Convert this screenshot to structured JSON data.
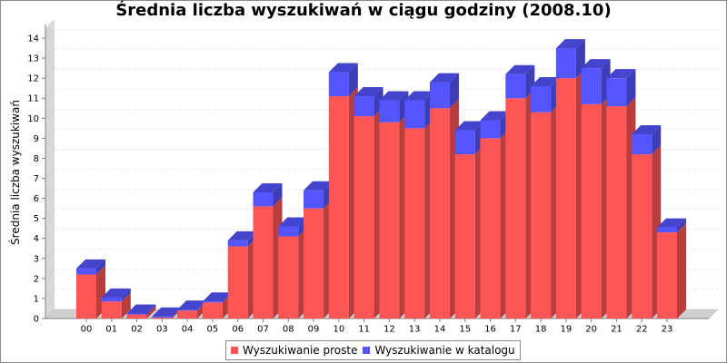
{
  "chart_data": {
    "type": "bar",
    "stacked": true,
    "three_d": true,
    "title": "Średnia liczba wyszukiwań w ciągu godziny (2008.10)",
    "xlabel": "",
    "ylabel": "Średnia liczba wyszukiwań",
    "ylim": [
      0,
      14.5
    ],
    "yticks": [
      0,
      1,
      2,
      3,
      4,
      5,
      6,
      7,
      8,
      9,
      10,
      11,
      12,
      13,
      14
    ],
    "grid": true,
    "legend_position": "bottom",
    "categories": [
      "00",
      "01",
      "02",
      "03",
      "04",
      "05",
      "06",
      "07",
      "08",
      "09",
      "10",
      "11",
      "12",
      "13",
      "14",
      "15",
      "16",
      "17",
      "18",
      "19",
      "20",
      "21",
      "22",
      "23"
    ],
    "series": [
      {
        "name": "Wyszukiwanie proste",
        "color": "#ff5555",
        "values": [
          2.2,
          0.85,
          0.2,
          0.05,
          0.4,
          0.8,
          3.6,
          5.6,
          4.1,
          5.5,
          11.1,
          10.1,
          9.8,
          9.5,
          10.5,
          8.2,
          9.0,
          11.0,
          10.3,
          12.0,
          10.7,
          10.6,
          8.2,
          4.3
        ]
      },
      {
        "name": "Wyszukiwanie w katalogu",
        "color": "#5555ff",
        "values": [
          0.3,
          0.2,
          0.05,
          0.05,
          0.05,
          0.05,
          0.3,
          0.7,
          0.5,
          0.9,
          1.2,
          1.0,
          1.1,
          1.4,
          1.3,
          1.2,
          0.9,
          1.2,
          1.3,
          1.5,
          1.8,
          1.4,
          1.0,
          0.25
        ]
      }
    ]
  }
}
